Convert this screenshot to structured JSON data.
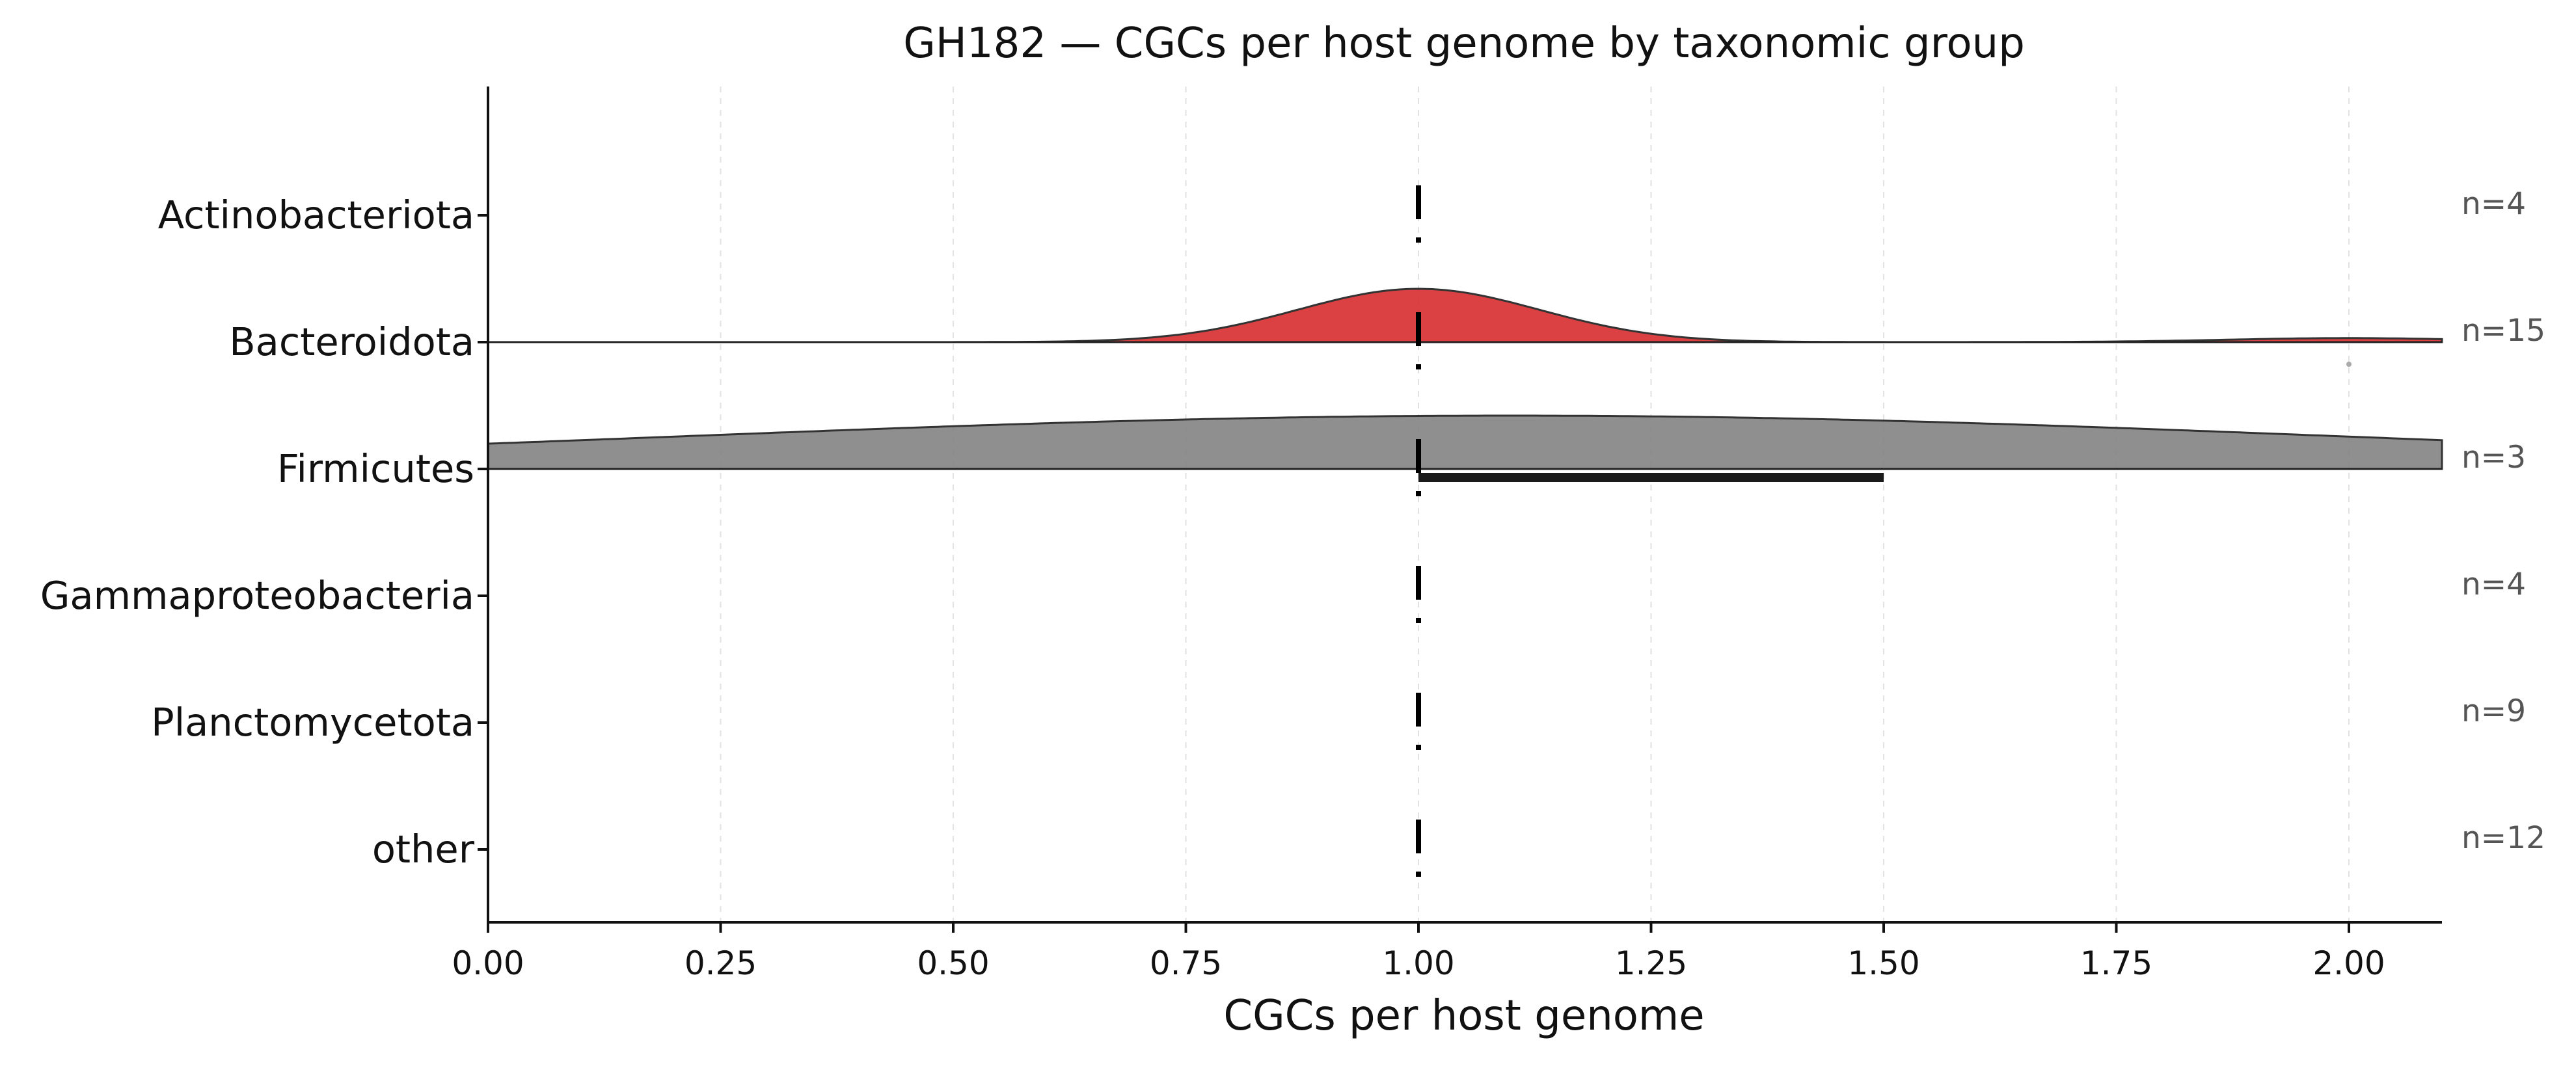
{
  "chart_data": {
    "type": "ridgeline",
    "title": "GH182 — CGCs per host genome by taxonomic group",
    "xlabel": "CGCs per host genome",
    "xlim": [
      0,
      2.1
    ],
    "xticks": [
      "0.00",
      "0.25",
      "0.50",
      "0.75",
      "1.00",
      "1.25",
      "1.50",
      "1.75",
      "2.00"
    ],
    "grid": "vertical dashed",
    "groups": [
      {
        "name": "Actinobacteriota",
        "n_label": "n=4",
        "median": 1.0,
        "density": null,
        "color": null
      },
      {
        "name": "Bacteroidota",
        "n_label": "n=15",
        "median": 1.0,
        "color": "#d62728",
        "density": {
          "components": [
            {
              "mean": 1.0,
              "sd": 0.13,
              "weight": 0.93
            },
            {
              "mean": 2.0,
              "sd": 0.13,
              "weight": 0.07
            }
          ]
        },
        "outliers": [
          2.0
        ]
      },
      {
        "name": "Firmicutes",
        "n_label": "n=3",
        "median": 1.0,
        "color": "#808080",
        "density": {
          "components": [
            {
              "mean": 1.1,
              "sd": 0.9,
              "weight": 1.0
            }
          ]
        },
        "iqr": [
          1.0,
          1.5
        ]
      },
      {
        "name": "Gammaproteobacteria",
        "n_label": "n=4",
        "median": 1.0,
        "density": null,
        "color": null
      },
      {
        "name": "Planctomycetota",
        "n_label": "n=9",
        "median": 1.0,
        "density": null,
        "color": null
      },
      {
        "name": "other",
        "n_label": "n=12",
        "median": 1.0,
        "density": null,
        "color": null
      }
    ]
  }
}
